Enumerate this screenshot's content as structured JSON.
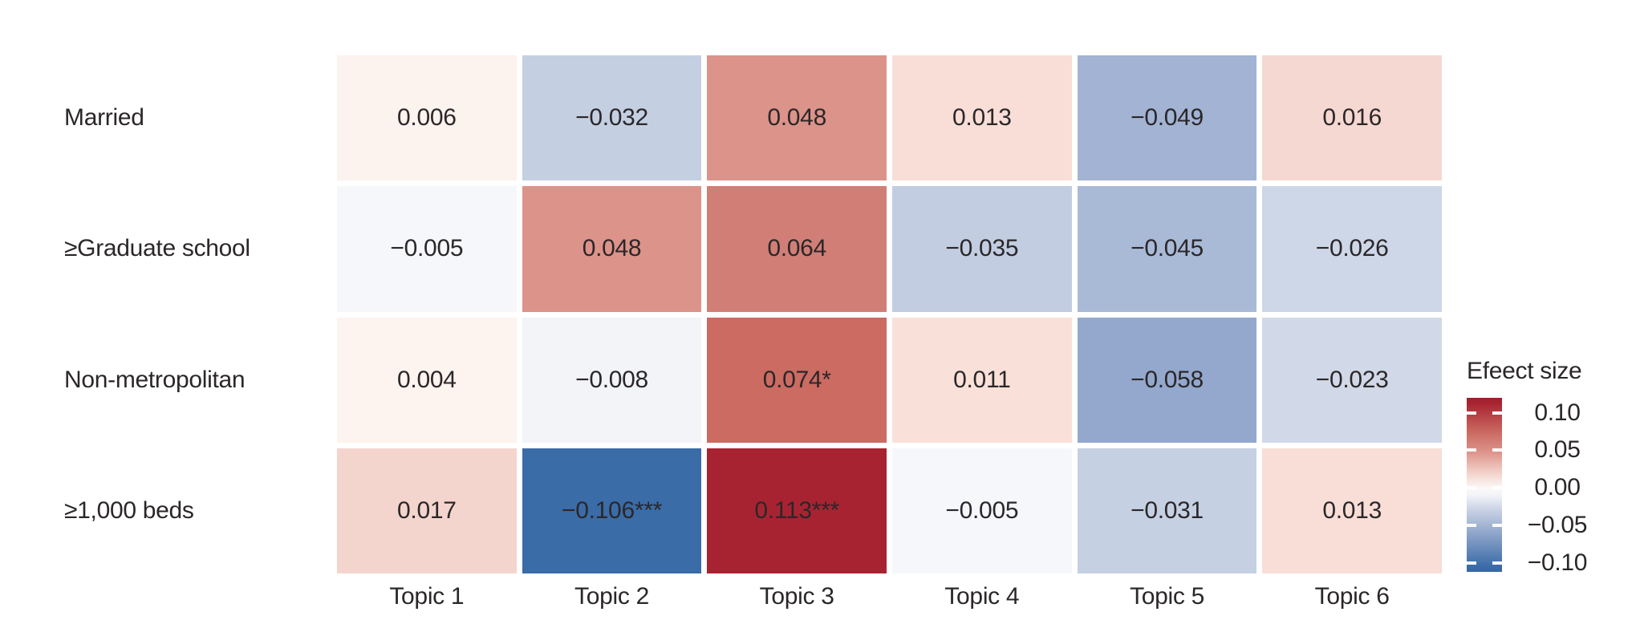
{
  "chart_data": {
    "type": "heatmap",
    "title": "",
    "xlabel": "",
    "ylabel": "",
    "grid_gap_color": "#FFFFFF",
    "text_color": "#2B2729",
    "columns": [
      "Topic 1",
      "Topic 2",
      "Topic 3",
      "Topic 4",
      "Topic 5",
      "Topic 6"
    ],
    "rows": [
      {
        "label": "Married",
        "cells": [
          {
            "text": "0.006",
            "value": 0.006,
            "color": "#FCF2EE"
          },
          {
            "text": "−0.032",
            "value": -0.032,
            "color": "#C5CFE2"
          },
          {
            "text": "0.048",
            "value": 0.048,
            "color": "#DC938A"
          },
          {
            "text": "0.013",
            "value": 0.013,
            "color": "#F8DED7"
          },
          {
            "text": "−0.049",
            "value": -0.049,
            "color": "#A2B3D3"
          },
          {
            "text": "0.016",
            "value": 0.016,
            "color": "#F5D8D1"
          }
        ]
      },
      {
        "label": "≥Graduate school",
        "cells": [
          {
            "text": "−0.005",
            "value": -0.005,
            "color": "#F5F7FA"
          },
          {
            "text": "0.048",
            "value": 0.048,
            "color": "#DC938A"
          },
          {
            "text": "0.064",
            "value": 0.064,
            "color": "#D17F76"
          },
          {
            "text": "−0.035",
            "value": -0.035,
            "color": "#C2CDE1"
          },
          {
            "text": "−0.045",
            "value": -0.045,
            "color": "#A9BAD7"
          },
          {
            "text": "−0.026",
            "value": -0.026,
            "color": "#CDD7E7"
          }
        ]
      },
      {
        "label": "Non-metropolitan",
        "cells": [
          {
            "text": "0.004",
            "value": 0.004,
            "color": "#FDF3EF"
          },
          {
            "text": "−0.008",
            "value": -0.008,
            "color": "#F2F4F8"
          },
          {
            "text": "0.074*",
            "value": 0.074,
            "color": "#CB6B62"
          },
          {
            "text": "0.011",
            "value": 0.011,
            "color": "#F9E1DA"
          },
          {
            "text": "−0.058",
            "value": -0.058,
            "color": "#93A8CC"
          },
          {
            "text": "−0.023",
            "value": -0.023,
            "color": "#D1D9E8"
          }
        ]
      },
      {
        "label": "≥1,000 beds",
        "cells": [
          {
            "text": "0.017",
            "value": 0.017,
            "color": "#F4D5CE"
          },
          {
            "text": "−0.106***",
            "value": -0.106,
            "color": "#3A6CA7"
          },
          {
            "text": "0.113***",
            "value": 0.113,
            "color": "#A82331"
          },
          {
            "text": "−0.005",
            "value": -0.005,
            "color": "#F5F7FA"
          },
          {
            "text": "−0.031",
            "value": -0.031,
            "color": "#C6D0E3"
          },
          {
            "text": "0.013",
            "value": 0.013,
            "color": "#F8DED7"
          }
        ]
      }
    ],
    "legend": {
      "title": "Efeect size",
      "position": "right",
      "range_max": 0.12,
      "range_min": -0.112,
      "tick_labels": [
        "0.10",
        "0.05",
        "0.00",
        "−0.05",
        "−0.10"
      ],
      "tick_values": [
        0.1,
        0.05,
        0.0,
        -0.05,
        -0.1
      ],
      "gradient_stops": [
        {
          "pos": 0.0,
          "color": "#9B2230"
        },
        {
          "pos": 0.03,
          "color": "#A82331"
        },
        {
          "pos": 0.2,
          "color": "#CB6B62"
        },
        {
          "pos": 0.31,
          "color": "#DC938A"
        },
        {
          "pos": 0.44,
          "color": "#F4D6CF"
        },
        {
          "pos": 0.52,
          "color": "#FBF9F8"
        },
        {
          "pos": 0.56,
          "color": "#F2F4F8"
        },
        {
          "pos": 0.65,
          "color": "#C6D0E3"
        },
        {
          "pos": 0.77,
          "color": "#93A8CC"
        },
        {
          "pos": 0.97,
          "color": "#3A6CA7"
        },
        {
          "pos": 1.0,
          "color": "#36679F"
        }
      ]
    }
  }
}
